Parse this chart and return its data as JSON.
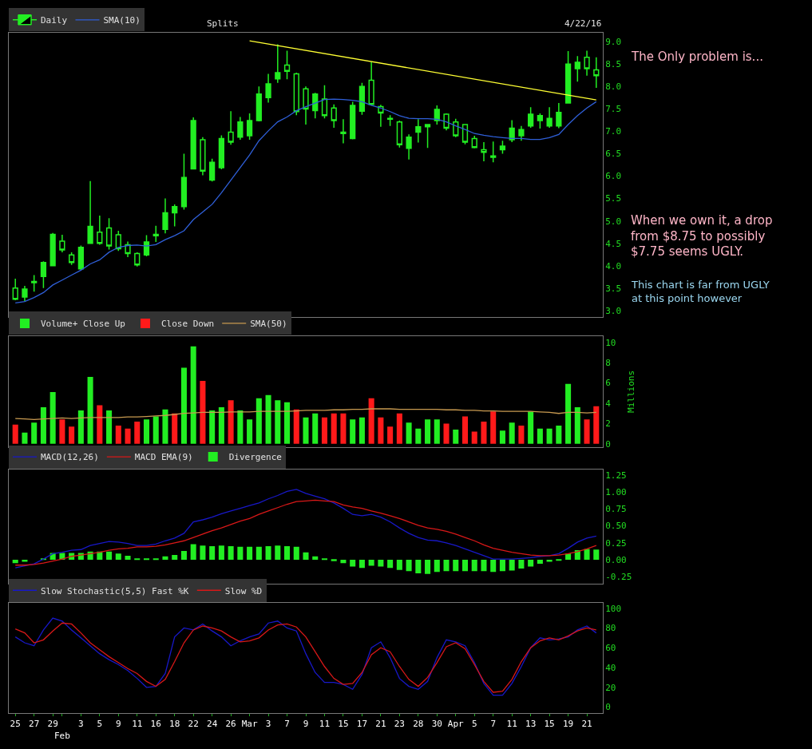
{
  "chart_data": [
    {
      "type": "candlestick",
      "legend": "top left",
      "tick_labels": "y",
      "ylim": [
        2.85,
        9.2
      ],
      "yticks": [
        {
          "value": 3,
          "label": "3.0"
        },
        3.5,
        {
          "value": 4,
          "label": "4.0"
        },
        4.5,
        {
          "value": 5,
          "label": "5.0"
        },
        5.5,
        {
          "value": 6,
          "label": "6.0"
        },
        6.5,
        {
          "value": 7,
          "label": "7.0"
        },
        7.5,
        {
          "value": 8,
          "label": "8.0"
        },
        8.5,
        {
          "value": 9,
          "label": "9.0"
        }
      ],
      "annotations": [
        "Splits",
        "4/22/16",
        "The Only problem is...",
        "When we own it, a drop from $8.75 to possibly $7.75 seems UGLY.",
        "This chart is far from UGLY at this point however"
      ],
      "series": [
        {
          "name": "Daily",
          "type": "candlestick",
          "color": "#22ee22",
          "ohlc": [
            [
              3.5,
              3.71,
              3.23,
              3.25
            ],
            [
              3.3,
              3.55,
              3.21,
              3.48
            ],
            [
              3.62,
              3.79,
              3.42,
              3.65
            ],
            [
              3.76,
              4.1,
              3.5,
              4.07
            ],
            [
              4.0,
              4.73,
              4.0,
              4.7
            ],
            [
              4.55,
              4.69,
              4.3,
              4.35
            ],
            [
              4.24,
              4.3,
              4.02,
              4.07
            ],
            [
              3.93,
              4.45,
              3.9,
              4.41
            ],
            [
              4.5,
              5.89,
              4.5,
              4.88
            ],
            [
              4.75,
              5.12,
              4.47,
              4.5
            ],
            [
              4.84,
              5.06,
              4.36,
              4.44
            ],
            [
              4.69,
              4.78,
              4.33,
              4.38
            ],
            [
              4.47,
              4.54,
              4.19,
              4.27
            ],
            [
              4.27,
              4.3,
              3.98,
              4.02
            ],
            [
              4.24,
              4.68,
              4.21,
              4.53
            ],
            [
              4.67,
              4.89,
              4.53,
              4.7
            ],
            [
              4.81,
              5.5,
              4.72,
              5.18
            ],
            [
              5.18,
              5.37,
              4.88,
              5.32
            ],
            [
              5.32,
              6.5,
              5.25,
              5.97
            ],
            [
              6.16,
              7.31,
              6.15,
              7.24
            ],
            [
              6.81,
              6.87,
              6.02,
              6.11
            ],
            [
              5.91,
              6.39,
              5.88,
              6.31
            ],
            [
              6.19,
              6.91,
              6.15,
              6.84
            ],
            [
              6.98,
              7.45,
              6.7,
              6.76
            ],
            [
              6.87,
              7.32,
              6.81,
              7.21
            ],
            [
              6.9,
              7.4,
              6.81,
              7.24
            ],
            [
              7.24,
              8.0,
              7.22,
              7.83
            ],
            [
              7.75,
              8.28,
              7.64,
              8.06
            ],
            [
              8.17,
              8.94,
              8.08,
              8.31
            ],
            [
              8.48,
              8.8,
              8.16,
              8.34
            ],
            [
              8.28,
              8.31,
              7.36,
              7.44
            ],
            [
              7.95,
              8.0,
              7.15,
              7.5
            ],
            [
              7.46,
              7.86,
              7.29,
              7.83
            ],
            [
              7.72,
              8.03,
              7.29,
              7.35
            ],
            [
              7.52,
              7.6,
              7.08,
              7.24
            ],
            [
              6.98,
              7.27,
              6.73,
              6.95
            ],
            [
              6.84,
              7.66,
              6.82,
              7.58
            ],
            [
              7.45,
              8.08,
              7.37,
              8.0
            ],
            [
              8.14,
              8.55,
              7.58,
              7.6
            ],
            [
              7.55,
              7.59,
              7.1,
              7.41
            ],
            [
              7.29,
              7.36,
              7.12,
              7.27
            ],
            [
              7.21,
              7.24,
              6.64,
              6.7
            ],
            [
              6.62,
              6.93,
              6.37,
              6.87
            ],
            [
              6.98,
              7.27,
              6.75,
              7.1
            ],
            [
              7.1,
              7.15,
              6.63,
              7.15
            ],
            [
              7.24,
              7.58,
              7.15,
              7.49
            ],
            [
              7.38,
              7.4,
              7.02,
              7.07
            ],
            [
              7.21,
              7.28,
              6.87,
              6.9
            ],
            [
              7.15,
              7.15,
              6.71,
              6.76
            ],
            [
              6.84,
              6.9,
              6.62,
              6.64
            ],
            [
              6.59,
              6.76,
              6.33,
              6.53
            ],
            [
              6.42,
              6.77,
              6.31,
              6.45
            ],
            [
              6.59,
              6.79,
              6.5,
              6.67
            ],
            [
              6.81,
              7.25,
              6.76,
              7.07
            ],
            [
              6.9,
              7.12,
              6.79,
              7.04
            ],
            [
              7.12,
              7.54,
              7.08,
              7.38
            ],
            [
              7.24,
              7.4,
              7.06,
              7.35
            ],
            [
              7.12,
              7.54,
              7.08,
              7.29
            ],
            [
              7.12,
              7.63,
              7.07,
              7.42
            ],
            [
              7.63,
              8.79,
              7.63,
              8.5
            ],
            [
              8.4,
              8.68,
              8.11,
              8.54
            ],
            [
              8.65,
              8.8,
              8.24,
              8.4
            ],
            [
              8.37,
              8.65,
              7.97,
              8.24
            ]
          ]
        },
        {
          "name": "SMA(10)",
          "type": "line",
          "color": "#2f5fd8",
          "values": [
            3.17,
            3.2,
            3.29,
            3.4,
            3.57,
            3.68,
            3.79,
            3.9,
            4.04,
            4.13,
            4.3,
            4.41,
            4.45,
            4.46,
            4.44,
            4.47,
            4.58,
            4.67,
            4.78,
            5.03,
            5.2,
            5.37,
            5.63,
            5.91,
            6.19,
            6.47,
            6.79,
            7.01,
            7.21,
            7.32,
            7.46,
            7.55,
            7.63,
            7.71,
            7.72,
            7.71,
            7.69,
            7.66,
            7.58,
            7.52,
            7.44,
            7.35,
            7.29,
            7.28,
            7.28,
            7.27,
            7.21,
            7.12,
            7.04,
            6.95,
            6.91,
            6.88,
            6.86,
            6.84,
            6.84,
            6.82,
            6.82,
            6.86,
            6.93,
            7.15,
            7.35,
            7.52,
            7.66
          ]
        },
        {
          "type": "line",
          "color": "#ffff33",
          "values": [
            null,
            null,
            null,
            null,
            null,
            null,
            null,
            null,
            null,
            null,
            null,
            null,
            null,
            null,
            null,
            null,
            null,
            null,
            null,
            null,
            null,
            null,
            null,
            null,
            null,
            9.02,
            null,
            null,
            null,
            null,
            null,
            null,
            null,
            null,
            null,
            null,
            null,
            null,
            null,
            null,
            null,
            null,
            null,
            null,
            null,
            null,
            null,
            null,
            null,
            null,
            null,
            null,
            null,
            null,
            null,
            null,
            null,
            null,
            null,
            null,
            null,
            null,
            7.7
          ]
        }
      ]
    },
    {
      "type": "bar",
      "legend": "top left",
      "tick_labels": "y",
      "ylabel": "Millions",
      "ylim": [
        -0.3,
        10.6
      ],
      "yticks": [
        0,
        2,
        4,
        6,
        8,
        10
      ],
      "series": [
        {
          "name": "Volume+ Close Up",
          "color": "#22ee22",
          "values": [
            null,
            1.1,
            2.1,
            3.6,
            5.1,
            null,
            null,
            3.3,
            6.6,
            null,
            3.3,
            null,
            null,
            null,
            2.4,
            2.7,
            3.4,
            null,
            7.5,
            9.6,
            null,
            3.3,
            3.6,
            null,
            3.3,
            2.4,
            4.5,
            4.8,
            4.3,
            4.1,
            null,
            2.6,
            3.0,
            null,
            null,
            null,
            2.4,
            2.6,
            null,
            null,
            null,
            null,
            2.1,
            1.5,
            2.4,
            2.4,
            null,
            1.4,
            null,
            null,
            null,
            null,
            1.3,
            2.1,
            null,
            3.2,
            1.5,
            1.5,
            1.8,
            5.9,
            3.6,
            null,
            null
          ]
        },
        {
          "name": "Close Down",
          "color": "#ff1a1a",
          "values": [
            1.9,
            null,
            null,
            null,
            null,
            2.4,
            1.7,
            null,
            null,
            3.8,
            null,
            1.8,
            1.5,
            2.2,
            null,
            null,
            null,
            3.0,
            null,
            null,
            6.2,
            null,
            null,
            4.3,
            null,
            null,
            null,
            null,
            null,
            null,
            3.4,
            null,
            null,
            2.6,
            3.0,
            3.0,
            null,
            null,
            4.5,
            2.6,
            1.7,
            3.0,
            null,
            null,
            null,
            null,
            2.0,
            null,
            2.7,
            1.2,
            2.2,
            3.2,
            null,
            null,
            1.8,
            null,
            null,
            null,
            null,
            null,
            null,
            2.4,
            3.7
          ]
        },
        {
          "name": "SMA(50)",
          "type": "line",
          "color": "#c89a50",
          "values": [
            2.5,
            2.45,
            2.4,
            2.45,
            2.5,
            2.55,
            2.5,
            2.55,
            2.6,
            2.6,
            2.6,
            2.6,
            2.65,
            2.65,
            2.7,
            2.75,
            2.8,
            2.9,
            3.0,
            3.05,
            3.1,
            3.1,
            3.1,
            3.15,
            3.15,
            3.15,
            3.2,
            3.2,
            3.2,
            3.2,
            3.25,
            3.3,
            3.3,
            3.3,
            3.35,
            3.35,
            3.4,
            3.4,
            3.45,
            3.45,
            3.45,
            3.4,
            3.4,
            3.4,
            3.4,
            3.4,
            3.35,
            3.35,
            3.3,
            3.3,
            3.25,
            3.25,
            3.2,
            3.2,
            3.2,
            3.2,
            3.15,
            3.1,
            3.0,
            3.1,
            3.1,
            3.05,
            3.1
          ]
        }
      ]
    },
    {
      "type": "line",
      "legend": "top left",
      "tick_labels": "y",
      "ylim": [
        -0.35,
        1.33
      ],
      "yticks": [
        {
          "value": -0.25,
          "label": "-0.25"
        },
        {
          "value": 0,
          "label": "0.00"
        },
        0.25,
        {
          "value": 0.5,
          "label": "0.50"
        },
        0.75,
        {
          "value": 1,
          "label": "1.00"
        },
        1.25
      ],
      "series": [
        {
          "name": "MACD(12,26)",
          "color": "#1818c8",
          "values": [
            -0.12,
            -0.09,
            -0.06,
            0.01,
            0.09,
            0.11,
            0.14,
            0.15,
            0.21,
            0.24,
            0.27,
            0.26,
            0.24,
            0.21,
            0.21,
            0.23,
            0.28,
            0.32,
            0.39,
            0.56,
            0.59,
            0.63,
            0.68,
            0.72,
            0.76,
            0.8,
            0.84,
            0.9,
            0.95,
            1.01,
            1.04,
            0.98,
            0.94,
            0.9,
            0.84,
            0.76,
            0.67,
            0.65,
            0.67,
            0.63,
            0.56,
            0.47,
            0.39,
            0.33,
            0.29,
            0.28,
            0.25,
            0.21,
            0.16,
            0.11,
            0.06,
            0.01,
            0.01,
            0.01,
            0.02,
            0.03,
            0.05,
            0.06,
            0.09,
            0.17,
            0.26,
            0.32,
            0.35
          ]
        },
        {
          "name": "MACD EMA(9)",
          "color": "#d81818",
          "values": [
            -0.08,
            -0.08,
            -0.07,
            -0.05,
            -0.02,
            0.01,
            0.05,
            0.07,
            0.09,
            0.11,
            0.14,
            0.16,
            0.17,
            0.19,
            0.19,
            0.2,
            0.22,
            0.25,
            0.28,
            0.33,
            0.38,
            0.43,
            0.47,
            0.52,
            0.57,
            0.61,
            0.67,
            0.72,
            0.77,
            0.82,
            0.86,
            0.87,
            0.88,
            0.87,
            0.86,
            0.81,
            0.78,
            0.76,
            0.72,
            0.69,
            0.65,
            0.61,
            0.56,
            0.51,
            0.47,
            0.45,
            0.42,
            0.38,
            0.33,
            0.28,
            0.22,
            0.17,
            0.14,
            0.11,
            0.09,
            0.07,
            0.06,
            0.06,
            0.07,
            0.09,
            0.12,
            0.16,
            0.21
          ]
        },
        {
          "name": "Divergence",
          "type": "bar",
          "color": "#22ee22",
          "values": [
            -0.05,
            -0.03,
            0.0,
            0.02,
            0.1,
            0.1,
            0.1,
            0.1,
            0.12,
            0.12,
            0.12,
            0.09,
            0.06,
            0.02,
            0.02,
            0.02,
            0.05,
            0.07,
            0.13,
            0.23,
            0.21,
            0.2,
            0.21,
            0.2,
            0.19,
            0.19,
            0.19,
            0.2,
            0.21,
            0.2,
            0.19,
            0.11,
            0.05,
            0.02,
            -0.02,
            -0.05,
            -0.1,
            -0.12,
            -0.09,
            -0.1,
            -0.12,
            -0.15,
            -0.17,
            -0.2,
            -0.21,
            -0.18,
            -0.17,
            -0.17,
            -0.17,
            -0.17,
            -0.17,
            -0.18,
            -0.17,
            -0.16,
            -0.13,
            -0.1,
            -0.06,
            -0.03,
            -0.01,
            0.09,
            0.14,
            0.16,
            0.15
          ]
        }
      ]
    },
    {
      "type": "line",
      "legend": "top left",
      "categories": [
        "25",
        null,
        "27",
        null,
        "29",
        "Feb",
        null,
        "3",
        null,
        "5",
        null,
        "9",
        null,
        "11",
        null,
        "16",
        null,
        "18",
        null,
        "22",
        null,
        "24",
        null,
        "26",
        null,
        "Mar",
        null,
        "3",
        null,
        "7",
        null,
        "9",
        null,
        "11",
        null,
        "15",
        null,
        "17",
        null,
        "21",
        null,
        "23",
        null,
        "28",
        null,
        "30",
        null,
        "Apr",
        null,
        "5",
        null,
        "7",
        null,
        "11",
        null,
        "13",
        null,
        "15",
        null,
        "19",
        null,
        "21",
        null
      ],
      "ylim": [
        -6,
        105
      ],
      "yticks": [
        0,
        20,
        40,
        60,
        80,
        100
      ],
      "series": [
        {
          "name": "Slow Stochastic(5,5) Fast %K",
          "color": "#1818c8",
          "values": [
            71,
            65,
            62,
            78,
            90,
            87,
            78,
            70,
            62,
            54,
            48,
            43,
            37,
            29,
            20,
            21,
            34,
            71,
            80,
            78,
            84,
            77,
            71,
            62,
            67,
            71,
            74,
            85,
            87,
            80,
            77,
            54,
            35,
            25,
            25,
            23,
            18,
            33,
            60,
            66,
            50,
            29,
            21,
            18,
            26,
            50,
            68,
            66,
            62,
            45,
            24,
            12,
            12,
            24,
            41,
            60,
            70,
            68,
            69,
            71,
            78,
            82,
            75
          ]
        },
        {
          "name": "Slow %D",
          "color": "#d81818",
          "values": [
            79,
            75,
            65,
            68,
            77,
            85,
            84,
            75,
            65,
            58,
            51,
            45,
            39,
            34,
            26,
            21,
            28,
            46,
            65,
            78,
            82,
            80,
            77,
            71,
            66,
            67,
            70,
            78,
            83,
            84,
            81,
            71,
            56,
            41,
            29,
            23,
            24,
            35,
            53,
            60,
            56,
            41,
            28,
            21,
            30,
            45,
            61,
            65,
            59,
            43,
            26,
            15,
            16,
            28,
            46,
            60,
            67,
            70,
            68,
            72,
            77,
            80,
            78
          ]
        }
      ]
    }
  ]
}
